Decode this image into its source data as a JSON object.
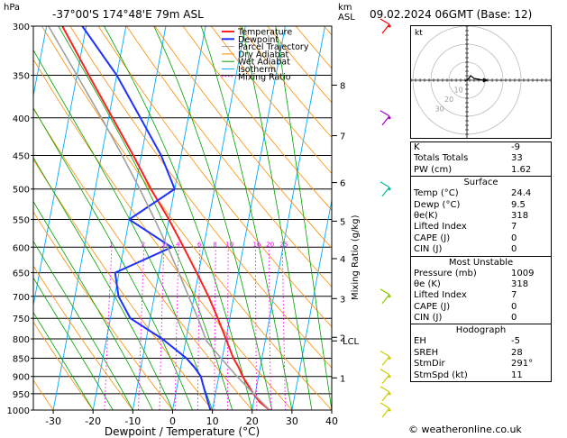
{
  "header": {
    "location": "-37°00'S  174°48'E  79m  ASL",
    "datetime": "09.02.2024  06GMT  (Base: 12)",
    "hpa_unit": "hPa",
    "km_unit": "km",
    "asl_unit": "ASL"
  },
  "colors": {
    "temperature": "#ff2020",
    "dewpoint": "#2030ff",
    "parcel": "#a0a0a0",
    "dry_adiabat": "#ff8c00",
    "wet_adiabat": "#00a000",
    "isotherm": "#00aaff",
    "mixing_ratio": "#ff00ff"
  },
  "chart_data": {
    "type": "line",
    "title": "Skew-T log-P diagram",
    "xlabel": "Dewpoint / Temperature (°C)",
    "ylabel": "hPa",
    "xlim": [
      -35,
      40
    ],
    "ylim": [
      1000,
      300
    ],
    "skew_deg_per_decade": 35,
    "x_ticks": [
      "-30",
      "-20",
      "-10",
      "0",
      "10",
      "20",
      "30",
      "40"
    ],
    "x_tick_values": [
      -30,
      -20,
      -10,
      0,
      10,
      20,
      30,
      40
    ],
    "pressure_levels": [
      300,
      350,
      400,
      450,
      500,
      550,
      600,
      650,
      700,
      750,
      800,
      850,
      900,
      950,
      1000
    ],
    "pressure_labels": [
      "300",
      "350",
      "400",
      "450",
      "500",
      "550",
      "600",
      "650",
      "700",
      "750",
      "800",
      "850",
      "900",
      "950",
      "1000"
    ],
    "km_ticks": [
      {
        "label": "1",
        "p": 904
      },
      {
        "label": "2",
        "p": 796
      },
      {
        "label": "3",
        "p": 705
      },
      {
        "label": "4",
        "p": 622
      },
      {
        "label": "5",
        "p": 553
      },
      {
        "label": "6",
        "p": 490
      },
      {
        "label": "7",
        "p": 423
      },
      {
        "label": "8",
        "p": 361
      }
    ],
    "lcl": {
      "label": "LCL",
      "p": 805
    },
    "mixing_ratio_label": "Mixing Ratio (g/kg)",
    "mixing_ratio_values": [
      "1",
      "2",
      "3",
      "4",
      "6",
      "8",
      "10",
      "16",
      "20",
      "25"
    ],
    "mixing_ratio_numbers": [
      1,
      2,
      3,
      4,
      6,
      8,
      10,
      16,
      20,
      25
    ],
    "legend": [
      "Temperature",
      "Dewpoint",
      "Parcel Trajectory",
      "Dry Adiabat",
      "Wet Adiabat",
      "Isotherm",
      "Mixing Ratio"
    ],
    "series": [
      {
        "name": "Temperature",
        "points": [
          [
            1000,
            24.4
          ],
          [
            975,
            21.5
          ],
          [
            950,
            19.5
          ],
          [
            925,
            17.8
          ],
          [
            900,
            16.0
          ],
          [
            875,
            14.6
          ],
          [
            850,
            12.8
          ],
          [
            800,
            10.0
          ],
          [
            750,
            7.0
          ],
          [
            700,
            3.6
          ],
          [
            650,
            -0.5
          ],
          [
            600,
            -5.0
          ],
          [
            550,
            -10.0
          ],
          [
            500,
            -16.0
          ],
          [
            450,
            -22.0
          ],
          [
            400,
            -29.0
          ],
          [
            350,
            -37.0
          ],
          [
            300,
            -46.0
          ]
        ]
      },
      {
        "name": "Dewpoint",
        "points": [
          [
            1000,
            9.5
          ],
          [
            975,
            8.5
          ],
          [
            950,
            7.5
          ],
          [
            925,
            6.5
          ],
          [
            900,
            5.5
          ],
          [
            875,
            3.5
          ],
          [
            850,
            1.0
          ],
          [
            800,
            -6.0
          ],
          [
            750,
            -15.0
          ],
          [
            700,
            -19.0
          ],
          [
            650,
            -21.0
          ],
          [
            600,
            -8.0
          ],
          [
            550,
            -20.0
          ],
          [
            500,
            -10.0
          ],
          [
            450,
            -15.0
          ],
          [
            400,
            -22.0
          ],
          [
            350,
            -30.0
          ],
          [
            300,
            -41.0
          ]
        ]
      },
      {
        "name": "Parcel Trajectory",
        "points": [
          [
            1000,
            24.4
          ],
          [
            950,
            19.6
          ],
          [
            900,
            14.6
          ],
          [
            850,
            9.7
          ],
          [
            805,
            5.2
          ],
          [
            750,
            2.0
          ],
          [
            700,
            -1.4
          ],
          [
            650,
            -5.0
          ],
          [
            600,
            -9.0
          ],
          [
            550,
            -13.6
          ],
          [
            500,
            -18.8
          ],
          [
            450,
            -24.8
          ],
          [
            400,
            -31.8
          ],
          [
            350,
            -40.0
          ],
          [
            300,
            -49.5
          ]
        ]
      }
    ],
    "wind_barbs": [
      {
        "p": 300,
        "color": "#ff0000"
      },
      {
        "p": 400,
        "color": "#aa00cc"
      },
      {
        "p": 500,
        "color": "#00bb99"
      },
      {
        "p": 700,
        "color": "#88cc00"
      },
      {
        "p": 850,
        "color": "#cccc00"
      },
      {
        "p": 900,
        "color": "#cccc00"
      },
      {
        "p": 950,
        "color": "#cccc00"
      },
      {
        "p": 1000,
        "color": "#cccc00"
      }
    ]
  },
  "hodograph": {
    "unit_label": "kt",
    "ring_labels": [
      "10",
      "20",
      "30"
    ]
  },
  "indices": {
    "top": [
      {
        "label": "K",
        "value": "-9"
      },
      {
        "label": "Totals Totals",
        "value": "33"
      },
      {
        "label": "PW (cm)",
        "value": "1.62"
      }
    ],
    "surface": {
      "title": "Surface",
      "rows": [
        {
          "label": "Temp (°C)",
          "value": "24.4"
        },
        {
          "label": "Dewp (°C)",
          "value": "9.5"
        },
        {
          "label": "θe(K)",
          "value": "318"
        },
        {
          "label": "Lifted Index",
          "value": "7"
        },
        {
          "label": "CAPE (J)",
          "value": "0"
        },
        {
          "label": "CIN (J)",
          "value": "0"
        }
      ]
    },
    "most_unstable": {
      "title": "Most Unstable",
      "rows": [
        {
          "label": "Pressure (mb)",
          "value": "1009"
        },
        {
          "label": "θe (K)",
          "value": "318"
        },
        {
          "label": "Lifted Index",
          "value": "7"
        },
        {
          "label": "CAPE (J)",
          "value": "0"
        },
        {
          "label": "CIN (J)",
          "value": "0"
        }
      ]
    },
    "hodograph": {
      "title": "Hodograph",
      "rows": [
        {
          "label": "EH",
          "value": "-5"
        },
        {
          "label": "SREH",
          "value": "28"
        },
        {
          "label": "StmDir",
          "value": "291°"
        },
        {
          "label": "StmSpd (kt)",
          "value": "11"
        }
      ]
    }
  },
  "footer": "© weatheronline.co.uk"
}
